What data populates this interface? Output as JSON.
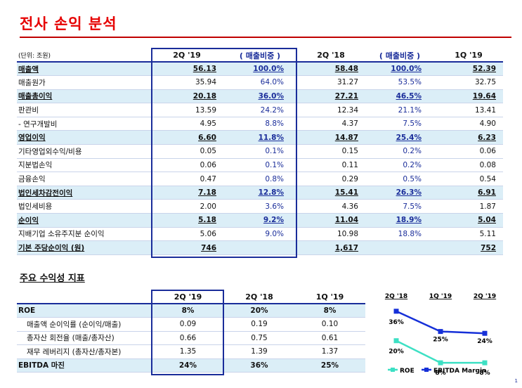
{
  "title": "전사 손익 분석",
  "main_table": {
    "unit": "(단위: 조원)",
    "headers": [
      "2Q '19",
      "( 매출비중 )",
      "2Q '18",
      "( 매출비중 )",
      "1Q '19"
    ],
    "rows": [
      {
        "label": "매출액",
        "v1": "56.13",
        "p1": "100.0%",
        "v2": "58.48",
        "p2": "100.0%",
        "v3": "52.39",
        "hl": true
      },
      {
        "label": "매출원가",
        "v1": "35.94",
        "p1": "64.0%",
        "v2": "31.27",
        "p2": "53.5%",
        "v3": "32.75",
        "hl": false
      },
      {
        "label": "매출총이익",
        "v1": "20.18",
        "p1": "36.0%",
        "v2": "27.21",
        "p2": "46.5%",
        "v3": "19.64",
        "hl": true
      },
      {
        "label": "판관비",
        "v1": "13.59",
        "p1": "24.2%",
        "v2": "12.34",
        "p2": "21.1%",
        "v3": "13.41",
        "hl": false
      },
      {
        "label": " - 연구개발비",
        "v1": "4.95",
        "p1": "8.8%",
        "v2": "4.37",
        "p2": "7.5%",
        "v3": "4.90",
        "hl": false
      },
      {
        "label": "영업이익",
        "v1": "6.60",
        "p1": "11.8%",
        "v2": "14.87",
        "p2": "25.4%",
        "v3": "6.23",
        "hl": true
      },
      {
        "label": "기타영업외수익/비용",
        "v1": "0.05",
        "p1": "0.1%",
        "v2": "0.15",
        "p2": "0.2%",
        "v3": "0.06",
        "hl": false
      },
      {
        "label": "지분법손익",
        "v1": "0.06",
        "p1": "0.1%",
        "v2": "0.11",
        "p2": "0.2%",
        "v3": "0.08",
        "hl": false
      },
      {
        "label": "금융손익",
        "v1": "0.47",
        "p1": "0.8%",
        "v2": "0.29",
        "p2": "0.5%",
        "v3": "0.54",
        "hl": false
      },
      {
        "label": "법인세차감전이익",
        "v1": "7.18",
        "p1": "12.8%",
        "v2": "15.41",
        "p2": "26.3%",
        "v3": "6.91",
        "hl": true
      },
      {
        "label": "법인세비용",
        "v1": "2.00",
        "p1": "3.6%",
        "v2": "4.36",
        "p2": "7.5%",
        "v3": "1.87",
        "hl": false
      },
      {
        "label": "순이익",
        "v1": "5.18",
        "p1": "9.2%",
        "v2": "11.04",
        "p2": "18.9%",
        "v3": "5.04",
        "hl": true
      },
      {
        "label": "지배기업 소유주지분 순이익",
        "v1": "5.06",
        "p1": "9.0%",
        "v2": "10.98",
        "p2": "18.8%",
        "v3": "5.11",
        "hl": false
      },
      {
        "label": "기본 주당순이익 (원)",
        "v1": "746",
        "p1": "",
        "v2": "1,617",
        "p2": "",
        "v3": "752",
        "hl": true
      }
    ]
  },
  "kpi_title": "주요 수익성 지표",
  "kpi_table": {
    "headers": [
      "2Q '19",
      "2Q '18",
      "1Q '19"
    ],
    "rows": [
      {
        "label": "ROE",
        "values": [
          "8%",
          "20%",
          "8%"
        ],
        "hl": true,
        "indent": false
      },
      {
        "label": "매출액 순이익률 (순이익/매출)",
        "values": [
          "0.09",
          "0.19",
          "0.10"
        ],
        "hl": false,
        "indent": true
      },
      {
        "label": "총자산 회전율 (매출/총자산)",
        "values": [
          "0.66",
          "0.75",
          "0.61"
        ],
        "hl": false,
        "indent": true
      },
      {
        "label": "재무 레버리지 (총자산/총자본)",
        "values": [
          "1.35",
          "1.39",
          "1.37"
        ],
        "hl": false,
        "indent": true
      },
      {
        "label": "EBITDA 마진",
        "values": [
          "24%",
          "36%",
          "25%"
        ],
        "hl": true,
        "indent": false
      }
    ]
  },
  "chart_data": {
    "type": "line",
    "categories": [
      "2Q '18",
      "1Q '19",
      "2Q '19"
    ],
    "series": [
      {
        "name": "ROE",
        "values": [
          20,
          8,
          8
        ],
        "labels": [
          "20%",
          "8%",
          "8%"
        ],
        "color": "#3de0c4"
      },
      {
        "name": "EBITDA Margin",
        "values": [
          36,
          25,
          24
        ],
        "labels": [
          "36%",
          "25%",
          "24%"
        ],
        "color": "#1630d8"
      }
    ],
    "legend_position": "bottom"
  },
  "page_number": "1"
}
